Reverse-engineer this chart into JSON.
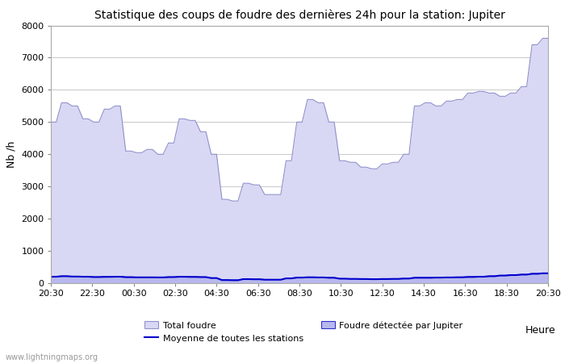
{
  "title": "Statistique des coups de foudre des dernières 24h pour la station: Jupiter",
  "xlabel": "Heure",
  "ylabel": "Nb /h",
  "ylim": [
    0,
    8000
  ],
  "yticks": [
    0,
    1000,
    2000,
    3000,
    4000,
    5000,
    6000,
    7000,
    8000
  ],
  "xtick_labels": [
    "20:30",
    "22:30",
    "00:30",
    "02:30",
    "04:30",
    "06:30",
    "08:30",
    "10:30",
    "12:30",
    "14:30",
    "16:30",
    "18:30",
    "20:30"
  ],
  "background_color": "#ffffff",
  "grid_color": "#cccccc",
  "total_foudre_color": "#d8d8f4",
  "total_foudre_edge": "#9090cc",
  "jupiter_foudre_color": "#b8b8ee",
  "jupiter_foudre_edge": "#3030cc",
  "moyenne_color": "#0000cc",
  "watermark": "www.lightningmaps.org",
  "total_foudre_values": [
    5000,
    5000,
    5600,
    5600,
    5500,
    5500,
    5100,
    5100,
    5000,
    5000,
    5400,
    5400,
    5500,
    5500,
    4100,
    4100,
    4050,
    4050,
    4150,
    4150,
    4000,
    4000,
    4350,
    4350,
    5100,
    5100,
    5050,
    5050,
    4700,
    4700,
    4000,
    4000,
    2600,
    2600,
    2550,
    2550,
    3100,
    3100,
    3050,
    3050,
    2750,
    2750,
    2750,
    2750,
    3800,
    3800,
    5000,
    5000,
    5700,
    5700,
    5600,
    5600,
    5000,
    5000,
    3800,
    3800,
    3750,
    3750,
    3600,
    3600,
    3550,
    3550,
    3700,
    3700,
    3750,
    3750,
    4000,
    4000,
    5500,
    5500,
    5600,
    5600,
    5500,
    5500,
    5650,
    5650,
    5700,
    5700,
    5900,
    5900,
    5950,
    5950,
    5900,
    5900,
    5800,
    5800,
    5900,
    5900,
    6100,
    6100,
    7400,
    7400,
    7600,
    7600
  ],
  "jupiter_foudre_values": [
    200,
    200,
    220,
    220,
    210,
    210,
    200,
    200,
    190,
    190,
    200,
    200,
    205,
    205,
    190,
    190,
    185,
    185,
    185,
    185,
    180,
    180,
    190,
    190,
    200,
    200,
    195,
    195,
    190,
    190,
    160,
    160,
    100,
    100,
    95,
    95,
    130,
    130,
    125,
    125,
    110,
    110,
    110,
    110,
    150,
    150,
    175,
    175,
    185,
    185,
    180,
    180,
    170,
    170,
    140,
    140,
    135,
    135,
    130,
    130,
    125,
    125,
    130,
    130,
    135,
    135,
    145,
    145,
    170,
    170,
    170,
    170,
    175,
    175,
    180,
    180,
    185,
    185,
    195,
    195,
    205,
    205,
    220,
    220,
    240,
    240,
    255,
    255,
    270,
    270,
    295,
    295,
    310,
    310
  ],
  "moyenne_values": [
    200,
    200,
    215,
    215,
    205,
    205,
    200,
    200,
    190,
    190,
    195,
    195,
    200,
    200,
    185,
    185,
    180,
    180,
    180,
    180,
    178,
    178,
    188,
    188,
    198,
    198,
    193,
    193,
    188,
    188,
    158,
    158,
    95,
    95,
    90,
    90,
    125,
    125,
    120,
    120,
    107,
    107,
    107,
    107,
    148,
    148,
    172,
    172,
    182,
    182,
    177,
    177,
    167,
    167,
    138,
    138,
    132,
    132,
    128,
    128,
    123,
    123,
    128,
    128,
    132,
    132,
    142,
    142,
    167,
    167,
    167,
    167,
    172,
    172,
    177,
    177,
    182,
    182,
    192,
    192,
    200,
    200,
    215,
    215,
    235,
    235,
    250,
    250,
    265,
    265,
    290,
    290,
    305,
    305
  ]
}
